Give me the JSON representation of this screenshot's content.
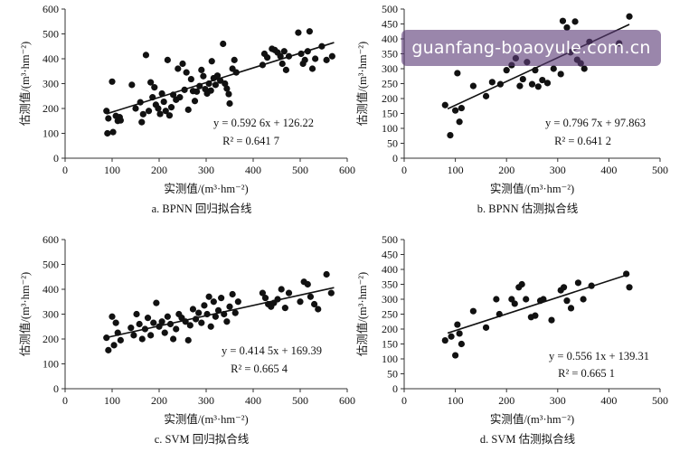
{
  "watermark": {
    "text": "guanfang-boaoyule.com.cn"
  },
  "chart_data": [
    {
      "type": "scatter",
      "caption": "a. BPNN 回归拟合线",
      "xlabel": "实测值/(m³·hm⁻²)",
      "ylabel": "估测值/(m³·hm⁻²)",
      "xlim": [
        0,
        600
      ],
      "ylim": [
        0,
        600
      ],
      "xticks": [
        0,
        100,
        200,
        300,
        400,
        500,
        600
      ],
      "yticks": [
        0,
        100,
        200,
        300,
        400,
        500,
        600
      ],
      "equation": "y = 0.592 6x + 126.22",
      "r2_label": "R² = 0.641 7",
      "trendline": {
        "slope": 0.5926,
        "intercept": 126.22,
        "x_range": [
          88,
          572
        ]
      },
      "points": [
        [
          88,
          190
        ],
        [
          90,
          100
        ],
        [
          92,
          160
        ],
        [
          100,
          308
        ],
        [
          102,
          105
        ],
        [
          108,
          170
        ],
        [
          112,
          150
        ],
        [
          116,
          165
        ],
        [
          118,
          152
        ],
        [
          142,
          295
        ],
        [
          150,
          200
        ],
        [
          160,
          225
        ],
        [
          163,
          145
        ],
        [
          166,
          177
        ],
        [
          172,
          415
        ],
        [
          178,
          190
        ],
        [
          182,
          305
        ],
        [
          186,
          245
        ],
        [
          190,
          285
        ],
        [
          193,
          215
        ],
        [
          198,
          200
        ],
        [
          202,
          178
        ],
        [
          206,
          260
        ],
        [
          210,
          227
        ],
        [
          214,
          190
        ],
        [
          218,
          395
        ],
        [
          222,
          172
        ],
        [
          226,
          205
        ],
        [
          230,
          255
        ],
        [
          236,
          235
        ],
        [
          240,
          360
        ],
        [
          244,
          245
        ],
        [
          250,
          380
        ],
        [
          254,
          275
        ],
        [
          258,
          345
        ],
        [
          262,
          195
        ],
        [
          268,
          318
        ],
        [
          272,
          270
        ],
        [
          276,
          230
        ],
        [
          280,
          268
        ],
        [
          286,
          290
        ],
        [
          290,
          355
        ],
        [
          294,
          330
        ],
        [
          298,
          278
        ],
        [
          302,
          260
        ],
        [
          306,
          300
        ],
        [
          310,
          272
        ],
        [
          312,
          390
        ],
        [
          316,
          322
        ],
        [
          320,
          295
        ],
        [
          324,
          332
        ],
        [
          330,
          312
        ],
        [
          336,
          460
        ],
        [
          340,
          300
        ],
        [
          344,
          280
        ],
        [
          348,
          258
        ],
        [
          350,
          220
        ],
        [
          356,
          360
        ],
        [
          360,
          395
        ],
        [
          364,
          345
        ],
        [
          420,
          375
        ],
        [
          424,
          420
        ],
        [
          430,
          405
        ],
        [
          440,
          440
        ],
        [
          446,
          435
        ],
        [
          452,
          425
        ],
        [
          458,
          410
        ],
        [
          462,
          380
        ],
        [
          466,
          430
        ],
        [
          470,
          355
        ],
        [
          476,
          410
        ],
        [
          496,
          505
        ],
        [
          502,
          420
        ],
        [
          506,
          380
        ],
        [
          510,
          395
        ],
        [
          516,
          430
        ],
        [
          520,
          510
        ],
        [
          526,
          360
        ],
        [
          532,
          400
        ],
        [
          546,
          450
        ],
        [
          556,
          395
        ],
        [
          568,
          410
        ]
      ]
    },
    {
      "type": "scatter",
      "caption": "b. BPNN 估测拟合线",
      "xlabel": "实测值/(m³·hm⁻²)",
      "ylabel": "估测值/(m³·hm⁻²)",
      "xlim": [
        0,
        500
      ],
      "ylim": [
        0,
        500
      ],
      "xticks": [
        0,
        100,
        200,
        300,
        400,
        500
      ],
      "yticks": [
        0,
        50,
        100,
        150,
        200,
        250,
        300,
        350,
        400,
        450,
        500
      ],
      "equation": "y = 0.796 7x + 97.863",
      "r2_label": "R² = 0.641 2",
      "trendline": {
        "slope": 0.7967,
        "intercept": 97.863,
        "x_range": [
          85,
          440
        ]
      },
      "points": [
        [
          80,
          178
        ],
        [
          90,
          77
        ],
        [
          100,
          160
        ],
        [
          104,
          285
        ],
        [
          108,
          122
        ],
        [
          112,
          168
        ],
        [
          135,
          242
        ],
        [
          160,
          208
        ],
        [
          172,
          255
        ],
        [
          188,
          248
        ],
        [
          200,
          295
        ],
        [
          210,
          312
        ],
        [
          218,
          335
        ],
        [
          226,
          242
        ],
        [
          232,
          265
        ],
        [
          240,
          322
        ],
        [
          250,
          248
        ],
        [
          256,
          295
        ],
        [
          262,
          240
        ],
        [
          270,
          262
        ],
        [
          280,
          252
        ],
        [
          292,
          300
        ],
        [
          306,
          282
        ],
        [
          310,
          460
        ],
        [
          318,
          438
        ],
        [
          325,
          355
        ],
        [
          334,
          458
        ],
        [
          338,
          330
        ],
        [
          345,
          318
        ],
        [
          352,
          300
        ],
        [
          362,
          390
        ],
        [
          420,
          385
        ],
        [
          440,
          475
        ]
      ]
    },
    {
      "type": "scatter",
      "caption": "c. SVM 回归拟合线",
      "xlabel": "实测值/(m³·hm⁻²)",
      "ylabel": "估测值/(m³·hm⁻²)",
      "xlim": [
        0,
        600
      ],
      "ylim": [
        0,
        600
      ],
      "xticks": [
        0,
        100,
        200,
        300,
        400,
        500,
        600
      ],
      "yticks": [
        0,
        100,
        200,
        300,
        400,
        500,
        600
      ],
      "equation": "y = 0.414 5x + 169.39",
      "r2_label": "R² = 0.665 4",
      "trendline": {
        "slope": 0.4145,
        "intercept": 169.39,
        "x_range": [
          88,
          572
        ]
      },
      "points": [
        [
          88,
          205
        ],
        [
          92,
          155
        ],
        [
          100,
          290
        ],
        [
          104,
          175
        ],
        [
          108,
          265
        ],
        [
          112,
          225
        ],
        [
          118,
          195
        ],
        [
          140,
          245
        ],
        [
          146,
          215
        ],
        [
          152,
          300
        ],
        [
          158,
          260
        ],
        [
          164,
          200
        ],
        [
          170,
          240
        ],
        [
          176,
          285
        ],
        [
          182,
          215
        ],
        [
          188,
          265
        ],
        [
          194,
          345
        ],
        [
          200,
          250
        ],
        [
          206,
          270
        ],
        [
          212,
          225
        ],
        [
          218,
          290
        ],
        [
          224,
          260
        ],
        [
          230,
          200
        ],
        [
          236,
          240
        ],
        [
          242,
          300
        ],
        [
          248,
          285
        ],
        [
          256,
          270
        ],
        [
          262,
          195
        ],
        [
          266,
          255
        ],
        [
          272,
          320
        ],
        [
          278,
          280
        ],
        [
          284,
          305
        ],
        [
          290,
          265
        ],
        [
          296,
          335
        ],
        [
          302,
          300
        ],
        [
          306,
          370
        ],
        [
          310,
          250
        ],
        [
          316,
          350
        ],
        [
          320,
          290
        ],
        [
          326,
          315
        ],
        [
          332,
          365
        ],
        [
          338,
          300
        ],
        [
          344,
          270
        ],
        [
          350,
          330
        ],
        [
          356,
          380
        ],
        [
          362,
          305
        ],
        [
          368,
          350
        ],
        [
          420,
          385
        ],
        [
          426,
          365
        ],
        [
          432,
          340
        ],
        [
          438,
          330
        ],
        [
          444,
          345
        ],
        [
          452,
          360
        ],
        [
          460,
          400
        ],
        [
          468,
          325
        ],
        [
          476,
          385
        ],
        [
          500,
          350
        ],
        [
          508,
          430
        ],
        [
          516,
          420
        ],
        [
          522,
          370
        ],
        [
          530,
          340
        ],
        [
          538,
          320
        ],
        [
          556,
          460
        ],
        [
          566,
          385
        ]
      ]
    },
    {
      "type": "scatter",
      "caption": "d. SVM 估测拟合线",
      "xlabel": "实测值/(m³·hm⁻²)",
      "ylabel": "估测值/(m³·hm⁻²)",
      "xlim": [
        0,
        500
      ],
      "ylim": [
        0,
        500
      ],
      "xticks": [
        0,
        100,
        200,
        300,
        400,
        500
      ],
      "yticks": [
        0,
        50,
        100,
        150,
        200,
        250,
        300,
        350,
        400,
        450,
        500
      ],
      "equation": "y = 0.556 1x + 139.31",
      "r2_label": "R² = 0.665 1",
      "trendline": {
        "slope": 0.5561,
        "intercept": 139.31,
        "x_range": [
          85,
          440
        ]
      },
      "points": [
        [
          80,
          162
        ],
        [
          92,
          175
        ],
        [
          100,
          112
        ],
        [
          104,
          215
        ],
        [
          108,
          185
        ],
        [
          112,
          150
        ],
        [
          135,
          260
        ],
        [
          160,
          205
        ],
        [
          180,
          300
        ],
        [
          186,
          250
        ],
        [
          210,
          300
        ],
        [
          216,
          285
        ],
        [
          224,
          340
        ],
        [
          230,
          350
        ],
        [
          238,
          300
        ],
        [
          248,
          240
        ],
        [
          256,
          245
        ],
        [
          266,
          295
        ],
        [
          272,
          300
        ],
        [
          288,
          230
        ],
        [
          306,
          330
        ],
        [
          312,
          340
        ],
        [
          318,
          295
        ],
        [
          326,
          270
        ],
        [
          340,
          355
        ],
        [
          350,
          300
        ],
        [
          366,
          345
        ],
        [
          434,
          385
        ],
        [
          440,
          340
        ]
      ]
    }
  ]
}
